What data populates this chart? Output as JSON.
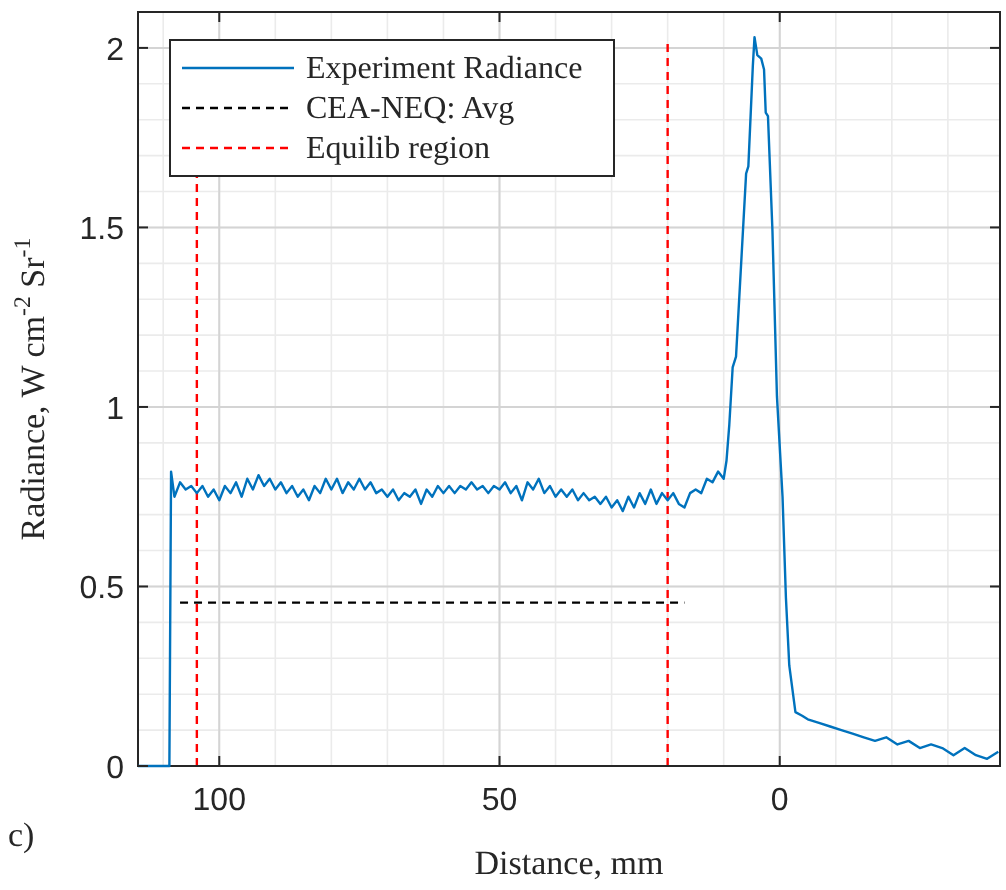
{
  "chart_data": {
    "type": "line",
    "xlabel": "Distance, mm",
    "ylabel": "Radiance, W cm$^{-2}$ Sr$^{-1}$",
    "annotations": [
      "c)"
    ],
    "xlim": [
      114.5,
      -39.3
    ],
    "ylim": [
      0,
      2.1
    ],
    "xticks": [
      100,
      50,
      0
    ],
    "yticks": [
      0,
      0.5,
      1,
      1.5,
      2
    ],
    "grid": true,
    "legend": "top left",
    "series": [
      {
        "name": "Experiment Radiance",
        "color": "#0072bd",
        "line_style": "solid",
        "x": [
          114.5,
          111.8,
          108.9,
          108.6,
          108,
          107,
          106,
          105,
          104,
          103,
          102,
          101,
          100,
          99,
          98,
          97,
          96,
          95,
          94,
          93,
          92,
          91,
          90,
          89,
          88,
          87,
          86,
          85,
          84,
          83,
          82,
          81,
          80,
          79,
          78,
          77,
          76,
          75,
          74,
          73,
          72,
          71,
          70,
          69,
          68,
          67,
          66,
          65,
          64,
          63,
          62,
          61,
          60,
          59,
          58,
          57,
          56,
          55,
          54,
          53,
          52,
          51,
          50,
          49,
          48,
          47,
          46,
          45,
          44,
          43,
          42,
          41,
          40,
          39,
          38,
          37,
          36,
          35,
          34,
          33,
          32,
          31,
          30,
          29,
          28,
          27,
          26,
          25,
          24,
          23,
          22,
          21,
          20,
          19,
          18,
          17,
          16,
          15,
          14,
          13,
          12,
          11,
          10,
          9.5,
          9,
          8.4,
          7.8,
          6,
          5.6,
          4.8,
          4.5,
          4,
          3.3,
          2.8,
          2.5,
          2.1,
          1.3,
          0.5,
          -0.5,
          -1.1,
          -1.7,
          -2.8,
          -4,
          -5,
          -7,
          -9,
          -11,
          -13,
          -15,
          -17,
          -19,
          -21,
          -23,
          -25,
          -27,
          -29,
          -31,
          -33,
          -35,
          -37,
          -39
        ],
        "values": [
          0,
          0,
          0,
          0.82,
          0.75,
          0.79,
          0.77,
          0.78,
          0.76,
          0.78,
          0.75,
          0.77,
          0.74,
          0.78,
          0.76,
          0.79,
          0.75,
          0.8,
          0.77,
          0.81,
          0.78,
          0.8,
          0.77,
          0.79,
          0.76,
          0.78,
          0.75,
          0.77,
          0.74,
          0.78,
          0.76,
          0.8,
          0.77,
          0.8,
          0.76,
          0.79,
          0.77,
          0.8,
          0.77,
          0.79,
          0.76,
          0.77,
          0.75,
          0.77,
          0.74,
          0.76,
          0.75,
          0.77,
          0.73,
          0.77,
          0.75,
          0.78,
          0.76,
          0.78,
          0.76,
          0.78,
          0.77,
          0.79,
          0.77,
          0.78,
          0.76,
          0.78,
          0.77,
          0.79,
          0.76,
          0.78,
          0.74,
          0.79,
          0.77,
          0.8,
          0.76,
          0.78,
          0.75,
          0.77,
          0.75,
          0.77,
          0.74,
          0.76,
          0.74,
          0.75,
          0.73,
          0.75,
          0.72,
          0.74,
          0.71,
          0.75,
          0.72,
          0.76,
          0.73,
          0.77,
          0.73,
          0.76,
          0.74,
          0.76,
          0.73,
          0.72,
          0.76,
          0.77,
          0.76,
          0.8,
          0.79,
          0.82,
          0.8,
          0.85,
          0.95,
          1.11,
          1.14,
          1.65,
          1.67,
          1.95,
          2.03,
          1.98,
          1.97,
          1.94,
          1.82,
          1.81,
          1.49,
          1.03,
          0.75,
          0.47,
          0.28,
          0.15,
          0.14,
          0.13,
          0.12,
          0.11,
          0.1,
          0.09,
          0.08,
          0.07,
          0.08,
          0.06,
          0.07,
          0.05,
          0.06,
          0.05,
          0.03,
          0.05,
          0.03,
          0.02,
          0.04
        ]
      },
      {
        "name": "CEA-NEQ: Avg",
        "color": "#000000",
        "line_style": "dashed",
        "x": [
          107,
          17
        ],
        "values": [
          0.455,
          0.455
        ]
      }
    ],
    "ref_lines": [
      {
        "axis": "x",
        "value": 104,
        "label": "Equilib region",
        "color": "#ff0000",
        "line_style": "dashed"
      },
      {
        "axis": "x",
        "value": 20,
        "color": "#ff0000",
        "line_style": "dashed"
      }
    ]
  }
}
